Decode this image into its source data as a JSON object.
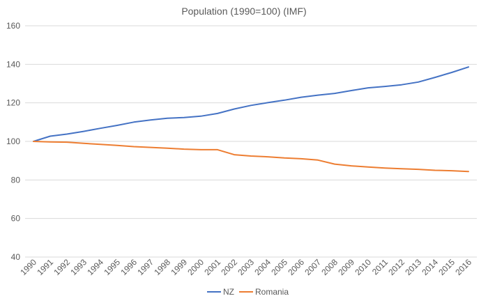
{
  "chart_data": {
    "type": "line",
    "title": "Population (1990=100)  (IMF)",
    "xlabel": "",
    "ylabel": "",
    "ylim": [
      40,
      160
    ],
    "yticks": [
      40,
      60,
      80,
      100,
      120,
      140,
      160
    ],
    "grid": true,
    "legend_position": "bottom",
    "categories": [
      "1990",
      "1991",
      "1992",
      "1993",
      "1994",
      "1995",
      "1996",
      "1997",
      "1998",
      "1999",
      "2000",
      "2001",
      "2002",
      "2003",
      "2004",
      "2005",
      "2006",
      "2007",
      "2008",
      "2009",
      "2010",
      "2011",
      "2012",
      "2013",
      "2014",
      "2015",
      "2016"
    ],
    "series": [
      {
        "name": "NZ",
        "color": "#4472C4",
        "values": [
          100,
          102.7,
          103.8,
          105.2,
          106.8,
          108.3,
          110.0,
          111.1,
          112.0,
          112.4,
          113.1,
          114.5,
          116.8,
          118.7,
          120.1,
          121.4,
          122.9,
          124.0,
          124.9,
          126.4,
          127.8,
          128.5,
          129.4,
          130.8,
          133.2,
          135.8,
          138.6
        ]
      },
      {
        "name": "Romania",
        "color": "#ED7D31",
        "values": [
          100,
          99.7,
          99.6,
          99.0,
          98.5,
          97.9,
          97.3,
          96.9,
          96.5,
          96.0,
          95.7,
          95.7,
          93.1,
          92.4,
          92.0,
          91.4,
          91.0,
          90.3,
          88.2,
          87.3,
          86.7,
          86.2,
          85.8,
          85.5,
          85.0,
          84.8,
          84.4
        ]
      }
    ]
  }
}
